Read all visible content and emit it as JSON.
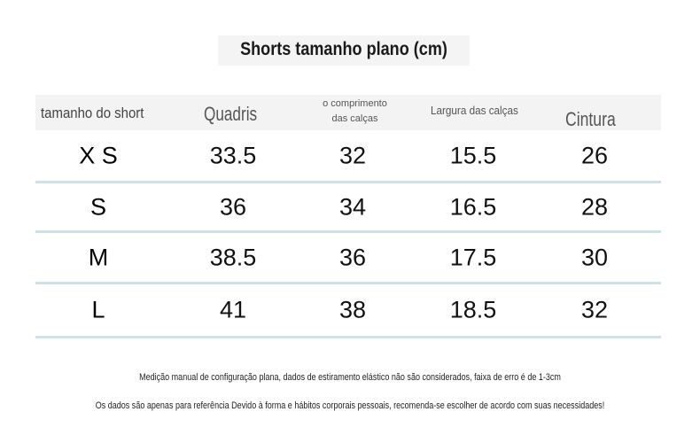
{
  "title": "Shorts tamanho plano (cm)",
  "headers": [
    "tamanho do short",
    "Quadris",
    "o comprimento das calças",
    "Largura das calças",
    "Cintura"
  ],
  "rows": [
    [
      "X S",
      "33.5",
      "32",
      "15.5",
      "26"
    ],
    [
      "S",
      "36",
      "34",
      "16.5",
      "28"
    ],
    [
      "M",
      "38.5",
      "36",
      "17.5",
      "30"
    ],
    [
      "L",
      "41",
      "38",
      "18.5",
      "32"
    ]
  ],
  "notes": [
    "Medição manual de configuração plana, dados de estiramento elástico não são considerados, faixa de erro é de 1-3cm",
    "Os dados são apenas para referência Devido à forma e hábitos corporais pessoais, recomenda-se escolher de acordo com suas necessidades!"
  ],
  "colors": {
    "row_divider": "#cfe0e6",
    "header_bg": "#f3f3f3"
  }
}
